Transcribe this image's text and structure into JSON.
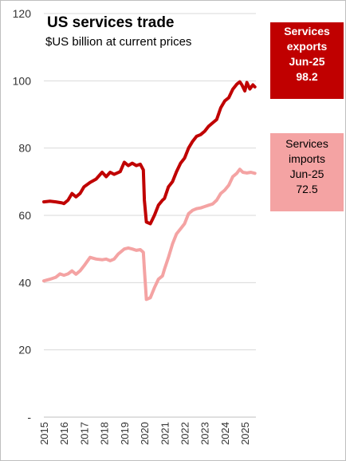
{
  "chart_data": {
    "type": "line",
    "title": "US services trade",
    "subtitle": "$US billion at current prices",
    "xlabel": "",
    "ylabel": "",
    "ylim": [
      0,
      120
    ],
    "xlim": [
      2015.0,
      2025.55
    ],
    "yticks": [
      "-",
      "20",
      "40",
      "60",
      "80",
      "100",
      "120"
    ],
    "xticks": [
      "2015",
      "2016",
      "2017",
      "2018",
      "2019",
      "2020",
      "2021",
      "2022",
      "2023",
      "2024",
      "2025"
    ],
    "grid": true,
    "legend": "none",
    "series": [
      {
        "name": "Services exports",
        "color": "#c00000",
        "points": [
          [
            2015.0,
            64
          ],
          [
            2015.3,
            64.2
          ],
          [
            2015.6,
            64
          ],
          [
            2015.9,
            63.7
          ],
          [
            2016.0,
            63.5
          ],
          [
            2016.2,
            64.5
          ],
          [
            2016.4,
            66.5
          ],
          [
            2016.6,
            65.5
          ],
          [
            2016.8,
            66.5
          ],
          [
            2017.0,
            68.5
          ],
          [
            2017.3,
            69.8
          ],
          [
            2017.6,
            70.8
          ],
          [
            2017.9,
            72.8
          ],
          [
            2018.1,
            71.5
          ],
          [
            2018.3,
            72.8
          ],
          [
            2018.5,
            72.2
          ],
          [
            2018.8,
            73
          ],
          [
            2019.0,
            75.8
          ],
          [
            2019.2,
            74.8
          ],
          [
            2019.4,
            75.5
          ],
          [
            2019.6,
            74.8
          ],
          [
            2019.8,
            75.2
          ],
          [
            2019.95,
            73.5
          ],
          [
            2020.0,
            64.5
          ],
          [
            2020.1,
            58
          ],
          [
            2020.3,
            57.5
          ],
          [
            2020.5,
            60
          ],
          [
            2020.7,
            63
          ],
          [
            2020.9,
            64.5
          ],
          [
            2021.0,
            65
          ],
          [
            2021.2,
            68.5
          ],
          [
            2021.4,
            70
          ],
          [
            2021.6,
            73
          ],
          [
            2021.8,
            75.5
          ],
          [
            2022.0,
            77
          ],
          [
            2022.2,
            80
          ],
          [
            2022.4,
            82
          ],
          [
            2022.6,
            83.5
          ],
          [
            2022.8,
            84
          ],
          [
            2023.0,
            85
          ],
          [
            2023.2,
            86.5
          ],
          [
            2023.4,
            87.5
          ],
          [
            2023.6,
            88.5
          ],
          [
            2023.8,
            92
          ],
          [
            2024.0,
            94
          ],
          [
            2024.2,
            95
          ],
          [
            2024.4,
            97.5
          ],
          [
            2024.6,
            99
          ],
          [
            2024.75,
            99.7
          ],
          [
            2024.85,
            98.8
          ],
          [
            2025.0,
            97
          ],
          [
            2025.1,
            99.5
          ],
          [
            2025.25,
            97.6
          ],
          [
            2025.4,
            98.8
          ],
          [
            2025.5,
            98.2
          ]
        ]
      },
      {
        "name": "Services imports",
        "color": "#f4a3a3",
        "points": [
          [
            2015.0,
            40.5
          ],
          [
            2015.3,
            41
          ],
          [
            2015.6,
            41.6
          ],
          [
            2015.8,
            42.6
          ],
          [
            2016.0,
            42.2
          ],
          [
            2016.2,
            42.6
          ],
          [
            2016.4,
            43.5
          ],
          [
            2016.6,
            42.5
          ],
          [
            2016.8,
            43.5
          ],
          [
            2017.0,
            45
          ],
          [
            2017.3,
            47.5
          ],
          [
            2017.6,
            47
          ],
          [
            2017.9,
            46.8
          ],
          [
            2018.1,
            47
          ],
          [
            2018.3,
            46.5
          ],
          [
            2018.5,
            47
          ],
          [
            2018.7,
            48.5
          ],
          [
            2019.0,
            50
          ],
          [
            2019.2,
            50.3
          ],
          [
            2019.4,
            50
          ],
          [
            2019.6,
            49.6
          ],
          [
            2019.8,
            49.8
          ],
          [
            2019.95,
            49
          ],
          [
            2020.0,
            44
          ],
          [
            2020.1,
            35
          ],
          [
            2020.3,
            35.5
          ],
          [
            2020.5,
            38.5
          ],
          [
            2020.7,
            41
          ],
          [
            2020.9,
            42
          ],
          [
            2021.0,
            44
          ],
          [
            2021.2,
            47.5
          ],
          [
            2021.4,
            51.5
          ],
          [
            2021.6,
            54.5
          ],
          [
            2021.8,
            56
          ],
          [
            2022.0,
            57.5
          ],
          [
            2022.2,
            60.5
          ],
          [
            2022.4,
            61.5
          ],
          [
            2022.6,
            62
          ],
          [
            2022.8,
            62.2
          ],
          [
            2023.0,
            62.6
          ],
          [
            2023.2,
            63
          ],
          [
            2023.4,
            63.4
          ],
          [
            2023.6,
            64.5
          ],
          [
            2023.8,
            66.5
          ],
          [
            2024.0,
            67.5
          ],
          [
            2024.2,
            69
          ],
          [
            2024.4,
            71.5
          ],
          [
            2024.6,
            72.5
          ],
          [
            2024.75,
            73.7
          ],
          [
            2024.9,
            72.8
          ],
          [
            2025.1,
            72.6
          ],
          [
            2025.3,
            72.8
          ],
          [
            2025.5,
            72.5
          ]
        ]
      }
    ]
  },
  "callouts": {
    "exports": {
      "line1": "Services",
      "line2": "exports",
      "line3": "Jun-25",
      "line4": "98.2"
    },
    "imports": {
      "line1": "Services",
      "line2": "imports",
      "line3": "Jun-25",
      "line4": "72.5"
    }
  }
}
